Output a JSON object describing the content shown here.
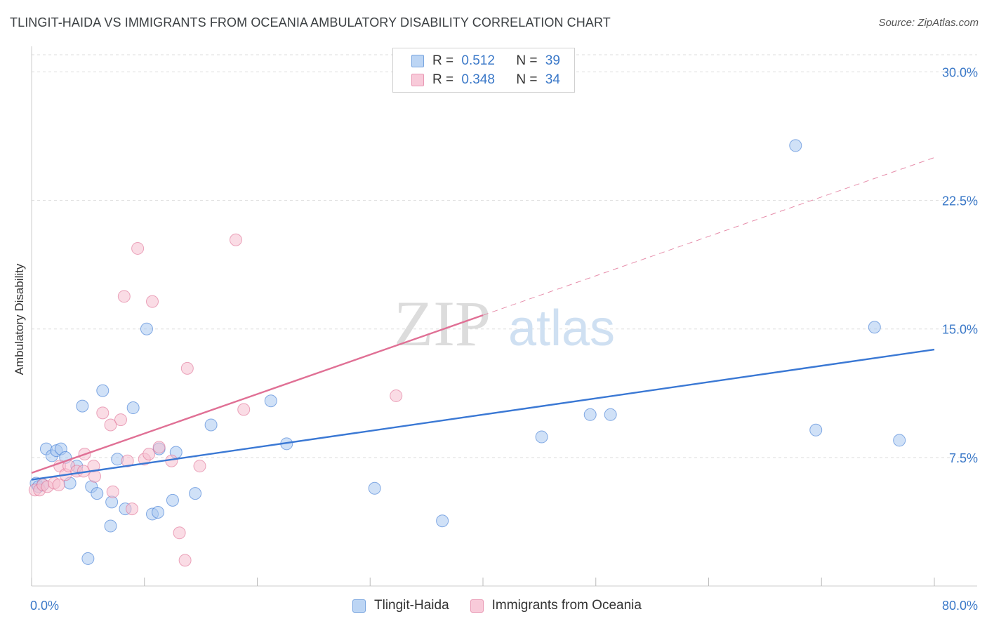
{
  "title": "TLINGIT-HAIDA VS IMMIGRANTS FROM OCEANIA AMBULATORY DISABILITY CORRELATION CHART",
  "source": "Source: ZipAtlas.com",
  "watermark": {
    "zip": "ZIP",
    "atlas": "atlas"
  },
  "legend_top": {
    "rows": [
      {
        "r_label": "R = ",
        "r_value": "0.512",
        "n_label": "N = ",
        "n_value": "39"
      },
      {
        "r_label": "R = ",
        "r_value": "0.348",
        "n_label": "N = ",
        "n_value": "34"
      }
    ]
  },
  "chart_data": {
    "type": "scatter",
    "title": "TLINGIT-HAIDA VS IMMIGRANTS FROM OCEANIA AMBULATORY DISABILITY CORRELATION CHART",
    "xlabel": "",
    "ylabel": "Ambulatory Disability",
    "xlim": [
      0,
      80
    ],
    "ylim": [
      0,
      31
    ],
    "x_tick_labels": [
      "0.0%",
      "80.0%"
    ],
    "y_ticks": [
      7.5,
      15.0,
      22.5,
      30.0
    ],
    "y_tick_labels": [
      "7.5%",
      "15.0%",
      "22.5%",
      "30.0%"
    ],
    "grid": true,
    "legend_position": "bottom",
    "series": [
      {
        "name": "Tlingit-Haida",
        "color": "#3a78d4",
        "fill": "#a9c8f0",
        "trend": {
          "x0": 0,
          "y0": 6.2,
          "x1": 80,
          "y1": 13.8,
          "dashed_to": null
        },
        "points": [
          [
            0.4,
            6.0
          ],
          [
            0.6,
            5.8
          ],
          [
            1.0,
            5.9
          ],
          [
            1.3,
            8.0
          ],
          [
            1.8,
            7.6
          ],
          [
            2.2,
            7.9
          ],
          [
            2.6,
            8.0
          ],
          [
            3.0,
            7.5
          ],
          [
            3.4,
            6.0
          ],
          [
            4.0,
            7.0
          ],
          [
            4.5,
            10.5
          ],
          [
            5.0,
            1.6
          ],
          [
            5.3,
            5.8
          ],
          [
            5.8,
            5.4
          ],
          [
            6.3,
            11.4
          ],
          [
            7.0,
            3.5
          ],
          [
            7.1,
            4.9
          ],
          [
            7.6,
            7.4
          ],
          [
            8.3,
            4.5
          ],
          [
            9.0,
            10.4
          ],
          [
            10.2,
            15.0
          ],
          [
            10.7,
            4.2
          ],
          [
            11.2,
            4.3
          ],
          [
            11.3,
            8.0
          ],
          [
            12.5,
            5.0
          ],
          [
            12.8,
            7.8
          ],
          [
            14.5,
            5.4
          ],
          [
            15.9,
            9.4
          ],
          [
            21.2,
            10.8
          ],
          [
            22.6,
            8.3
          ],
          [
            30.4,
            5.7
          ],
          [
            36.4,
            3.8
          ],
          [
            45.2,
            8.7
          ],
          [
            49.5,
            10.0
          ],
          [
            51.3,
            10.0
          ],
          [
            67.7,
            25.7
          ],
          [
            69.5,
            9.1
          ],
          [
            74.7,
            15.1
          ],
          [
            76.9,
            8.5
          ]
        ]
      },
      {
        "name": "Immigrants from Oceania",
        "color": "#e07095",
        "fill": "#f6bfd0",
        "trend": {
          "x0": 0,
          "y0": 6.6,
          "x1": 40,
          "y1": 15.8,
          "dashed_to": {
            "x": 80,
            "y": 25.0
          }
        },
        "points": [
          [
            0.3,
            5.6
          ],
          [
            0.7,
            5.6
          ],
          [
            1.0,
            5.9
          ],
          [
            1.4,
            5.8
          ],
          [
            2.0,
            6.0
          ],
          [
            2.4,
            5.9
          ],
          [
            2.5,
            7.0
          ],
          [
            3.0,
            6.5
          ],
          [
            3.3,
            7.0
          ],
          [
            4.0,
            6.7
          ],
          [
            4.6,
            6.7
          ],
          [
            4.7,
            7.7
          ],
          [
            5.5,
            7.0
          ],
          [
            5.6,
            6.4
          ],
          [
            6.3,
            10.1
          ],
          [
            7.0,
            9.4
          ],
          [
            7.2,
            5.5
          ],
          [
            7.9,
            9.7
          ],
          [
            8.2,
            16.9
          ],
          [
            8.5,
            7.3
          ],
          [
            8.9,
            4.5
          ],
          [
            9.4,
            19.7
          ],
          [
            10.0,
            7.4
          ],
          [
            10.4,
            7.7
          ],
          [
            10.7,
            16.6
          ],
          [
            11.3,
            8.1
          ],
          [
            12.4,
            7.3
          ],
          [
            13.1,
            3.1
          ],
          [
            13.6,
            1.5
          ],
          [
            13.8,
            12.7
          ],
          [
            14.9,
            7.0
          ],
          [
            18.1,
            20.2
          ],
          [
            18.8,
            10.3
          ],
          [
            32.3,
            11.1
          ]
        ]
      }
    ]
  }
}
